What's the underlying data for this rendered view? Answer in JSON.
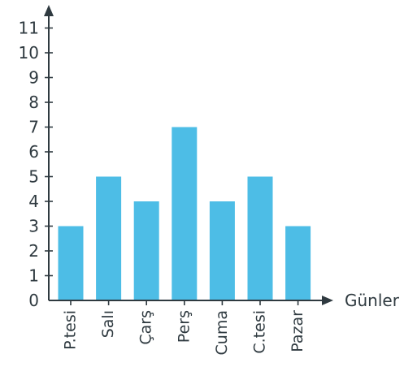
{
  "chart_data": {
    "type": "bar",
    "categories": [
      "P.tesi",
      "Salı",
      "Çarş",
      "Perş",
      "Cuma",
      "C.tesi",
      "Pazar"
    ],
    "values": [
      3,
      5,
      4,
      7,
      4,
      5,
      3
    ],
    "xlabel": "Günler",
    "ylabel": "",
    "ylim": [
      0,
      11
    ],
    "yticks": [
      "0",
      "1",
      "2",
      "3",
      "4",
      "5",
      "6",
      "7",
      "8",
      "9",
      "10",
      "11"
    ],
    "grid": false,
    "legend": "none",
    "colors": {
      "bar": "#4dbde6",
      "axis": "#2f3a40",
      "text": "#2f3a40"
    }
  }
}
